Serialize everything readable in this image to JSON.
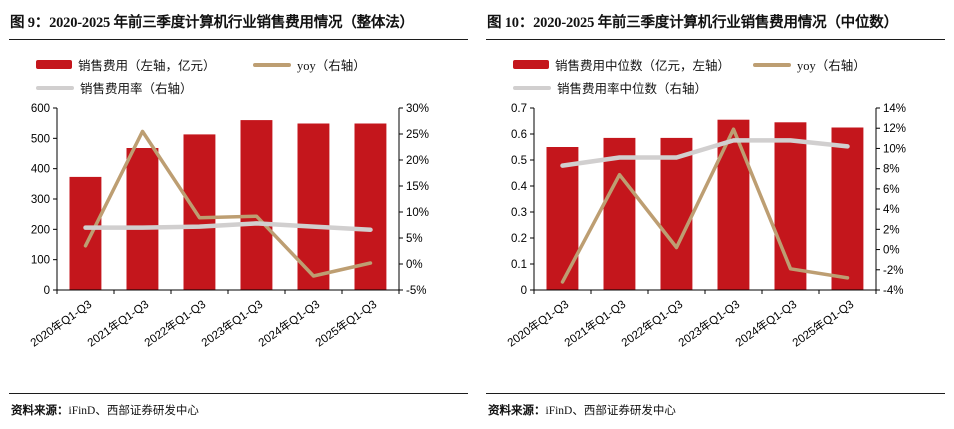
{
  "figures": [
    {
      "title": "图 9：2020-2025 年前三季度计算机行业销售费用情况（整体法）",
      "source_label": "资料来源：",
      "source_text": "iFinD、西部证券研发中心"
    },
    {
      "title": "图 10：2020-2025 年前三季度计算机行业销售费用情况（中位数）",
      "source_label": "资料来源：",
      "source_text": "iFinD、西部证券研发中心"
    }
  ],
  "colors": {
    "bar_red": "#C4161C",
    "line_tan": "#BD9E72",
    "line_gray": "#D1CFCF",
    "axis": "#000000"
  },
  "chart_data": [
    {
      "type": "bar+line",
      "title": "图 9：2020-2025 年前三季度计算机行业销售费用情况（整体法）",
      "categories": [
        "2020年Q1-Q3",
        "2021年Q1-Q3",
        "2022年Q1-Q3",
        "2023年Q1-Q3",
        "2024年Q1-Q3",
        "2025年Q1-Q3"
      ],
      "bar_series": {
        "name": "销售费用（左轴，亿元）",
        "axis": "left",
        "color": "#C4161C",
        "values": [
          373,
          468,
          513,
          560,
          549,
          549
        ]
      },
      "line_series": [
        {
          "name": "yoy（右轴）",
          "axis": "right",
          "color": "#BD9E72",
          "width": 3.5,
          "values": [
            3.5,
            25.5,
            8.9,
            9.2,
            -2.3,
            0.2
          ]
        },
        {
          "name": "销售费用率（右轴）",
          "axis": "right",
          "color": "#D1CFCF",
          "width": 4.5,
          "values": [
            7.0,
            7.0,
            7.2,
            7.8,
            7.2,
            6.6
          ]
        }
      ],
      "left_axis": {
        "min": 0,
        "max": 600,
        "step": 100
      },
      "right_axis": {
        "min": -5,
        "max": 30,
        "step": 5,
        "suffix": "%"
      },
      "x_tick_rotation": -35,
      "grid": false,
      "legend_position": "top"
    },
    {
      "type": "bar+line",
      "title": "图 10：2020-2025 年前三季度计算机行业销售费用情况（中位数）",
      "categories": [
        "2020年Q1-Q3",
        "2021年Q1-Q3",
        "2022年Q1-Q3",
        "2023年Q1-Q3",
        "2024年Q1-Q3",
        "2025年Q1-Q3"
      ],
      "bar_series": {
        "name": "销售费用中位数（亿元，左轴）",
        "axis": "left",
        "color": "#C4161C",
        "values": [
          0.55,
          0.585,
          0.585,
          0.655,
          0.645,
          0.625
        ]
      },
      "line_series": [
        {
          "name": "yoy（右轴）",
          "axis": "right",
          "color": "#BD9E72",
          "width": 3.5,
          "values": [
            -3.2,
            7.4,
            0.2,
            11.9,
            -1.9,
            -2.8
          ]
        },
        {
          "name": "销售费用率中位数（右轴）",
          "axis": "right",
          "color": "#D1CFCF",
          "width": 4.5,
          "values": [
            8.3,
            9.1,
            9.1,
            10.8,
            10.8,
            10.2
          ]
        }
      ],
      "left_axis": {
        "min": 0,
        "max": 0.7,
        "step": 0.1,
        "decimals": 1
      },
      "right_axis": {
        "min": -4,
        "max": 14,
        "step": 2,
        "suffix": "%"
      },
      "x_tick_rotation": -35,
      "grid": false,
      "legend_position": "top"
    }
  ]
}
